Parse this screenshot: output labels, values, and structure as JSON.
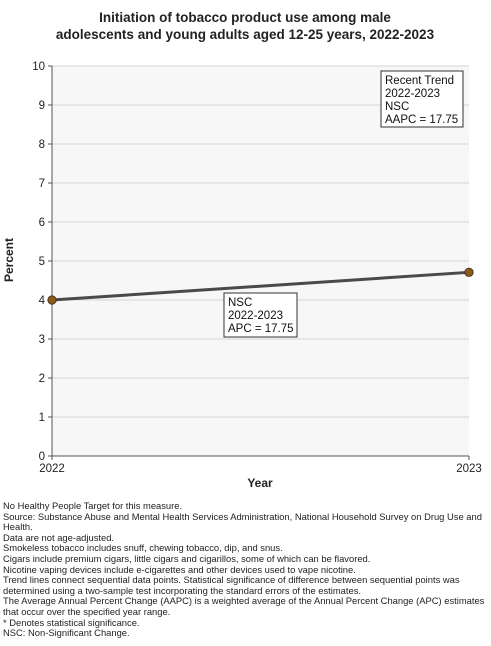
{
  "chart_data": {
    "type": "line",
    "title_lines": [
      "Initiation of tobacco product use among male",
      "adolescents and young adults aged 12-25 years, 2022-2023"
    ],
    "xlabel": "Year",
    "ylabel": "Percent",
    "ylim": [
      0,
      10
    ],
    "yticks": [
      0,
      1,
      2,
      3,
      4,
      5,
      6,
      7,
      8,
      9,
      10
    ],
    "xticks": [
      "2022",
      "2023"
    ],
    "x": [
      2022,
      2023
    ],
    "series": [
      {
        "values": [
          4.0,
          4.71
        ],
        "color": "#4a4a4a",
        "marker_color": "#8b5a1e"
      }
    ],
    "grid": true,
    "annotations": [
      {
        "lines": [
          "NSC",
          "2022-2023",
          "APC = 17.75"
        ]
      },
      {
        "lines": [
          "Recent Trend",
          "2022-2023",
          "NSC",
          "AAPC = 17.75"
        ]
      }
    ]
  },
  "footnotes": [
    "No Healthy People Target for this measure.",
    "Source: Substance Abuse and Mental Health Services Administration, National Household Survey on Drug Use and Health.",
    "Data are not age-adjusted.",
    "Smokeless tobacco includes snuff, chewing tobacco, dip, and snus.",
    "Cigars include premium cigars, little cigars and cigarillos, some of which can be flavored.",
    "Nicotine vaping devices include e-cigarettes and other devices used to vape nicotine.",
    "Trend lines connect sequential data points. Statistical significance of difference between sequential points was determined using a two-sample test incorporating the standard errors of the estimates.",
    "The Average Annual Percent Change (AAPC) is a weighted average of the Annual Percent Change (APC) estimates that occur over the specified year range.",
    "* Denotes statistical significance.",
    "NSC: Non-Significant Change."
  ]
}
